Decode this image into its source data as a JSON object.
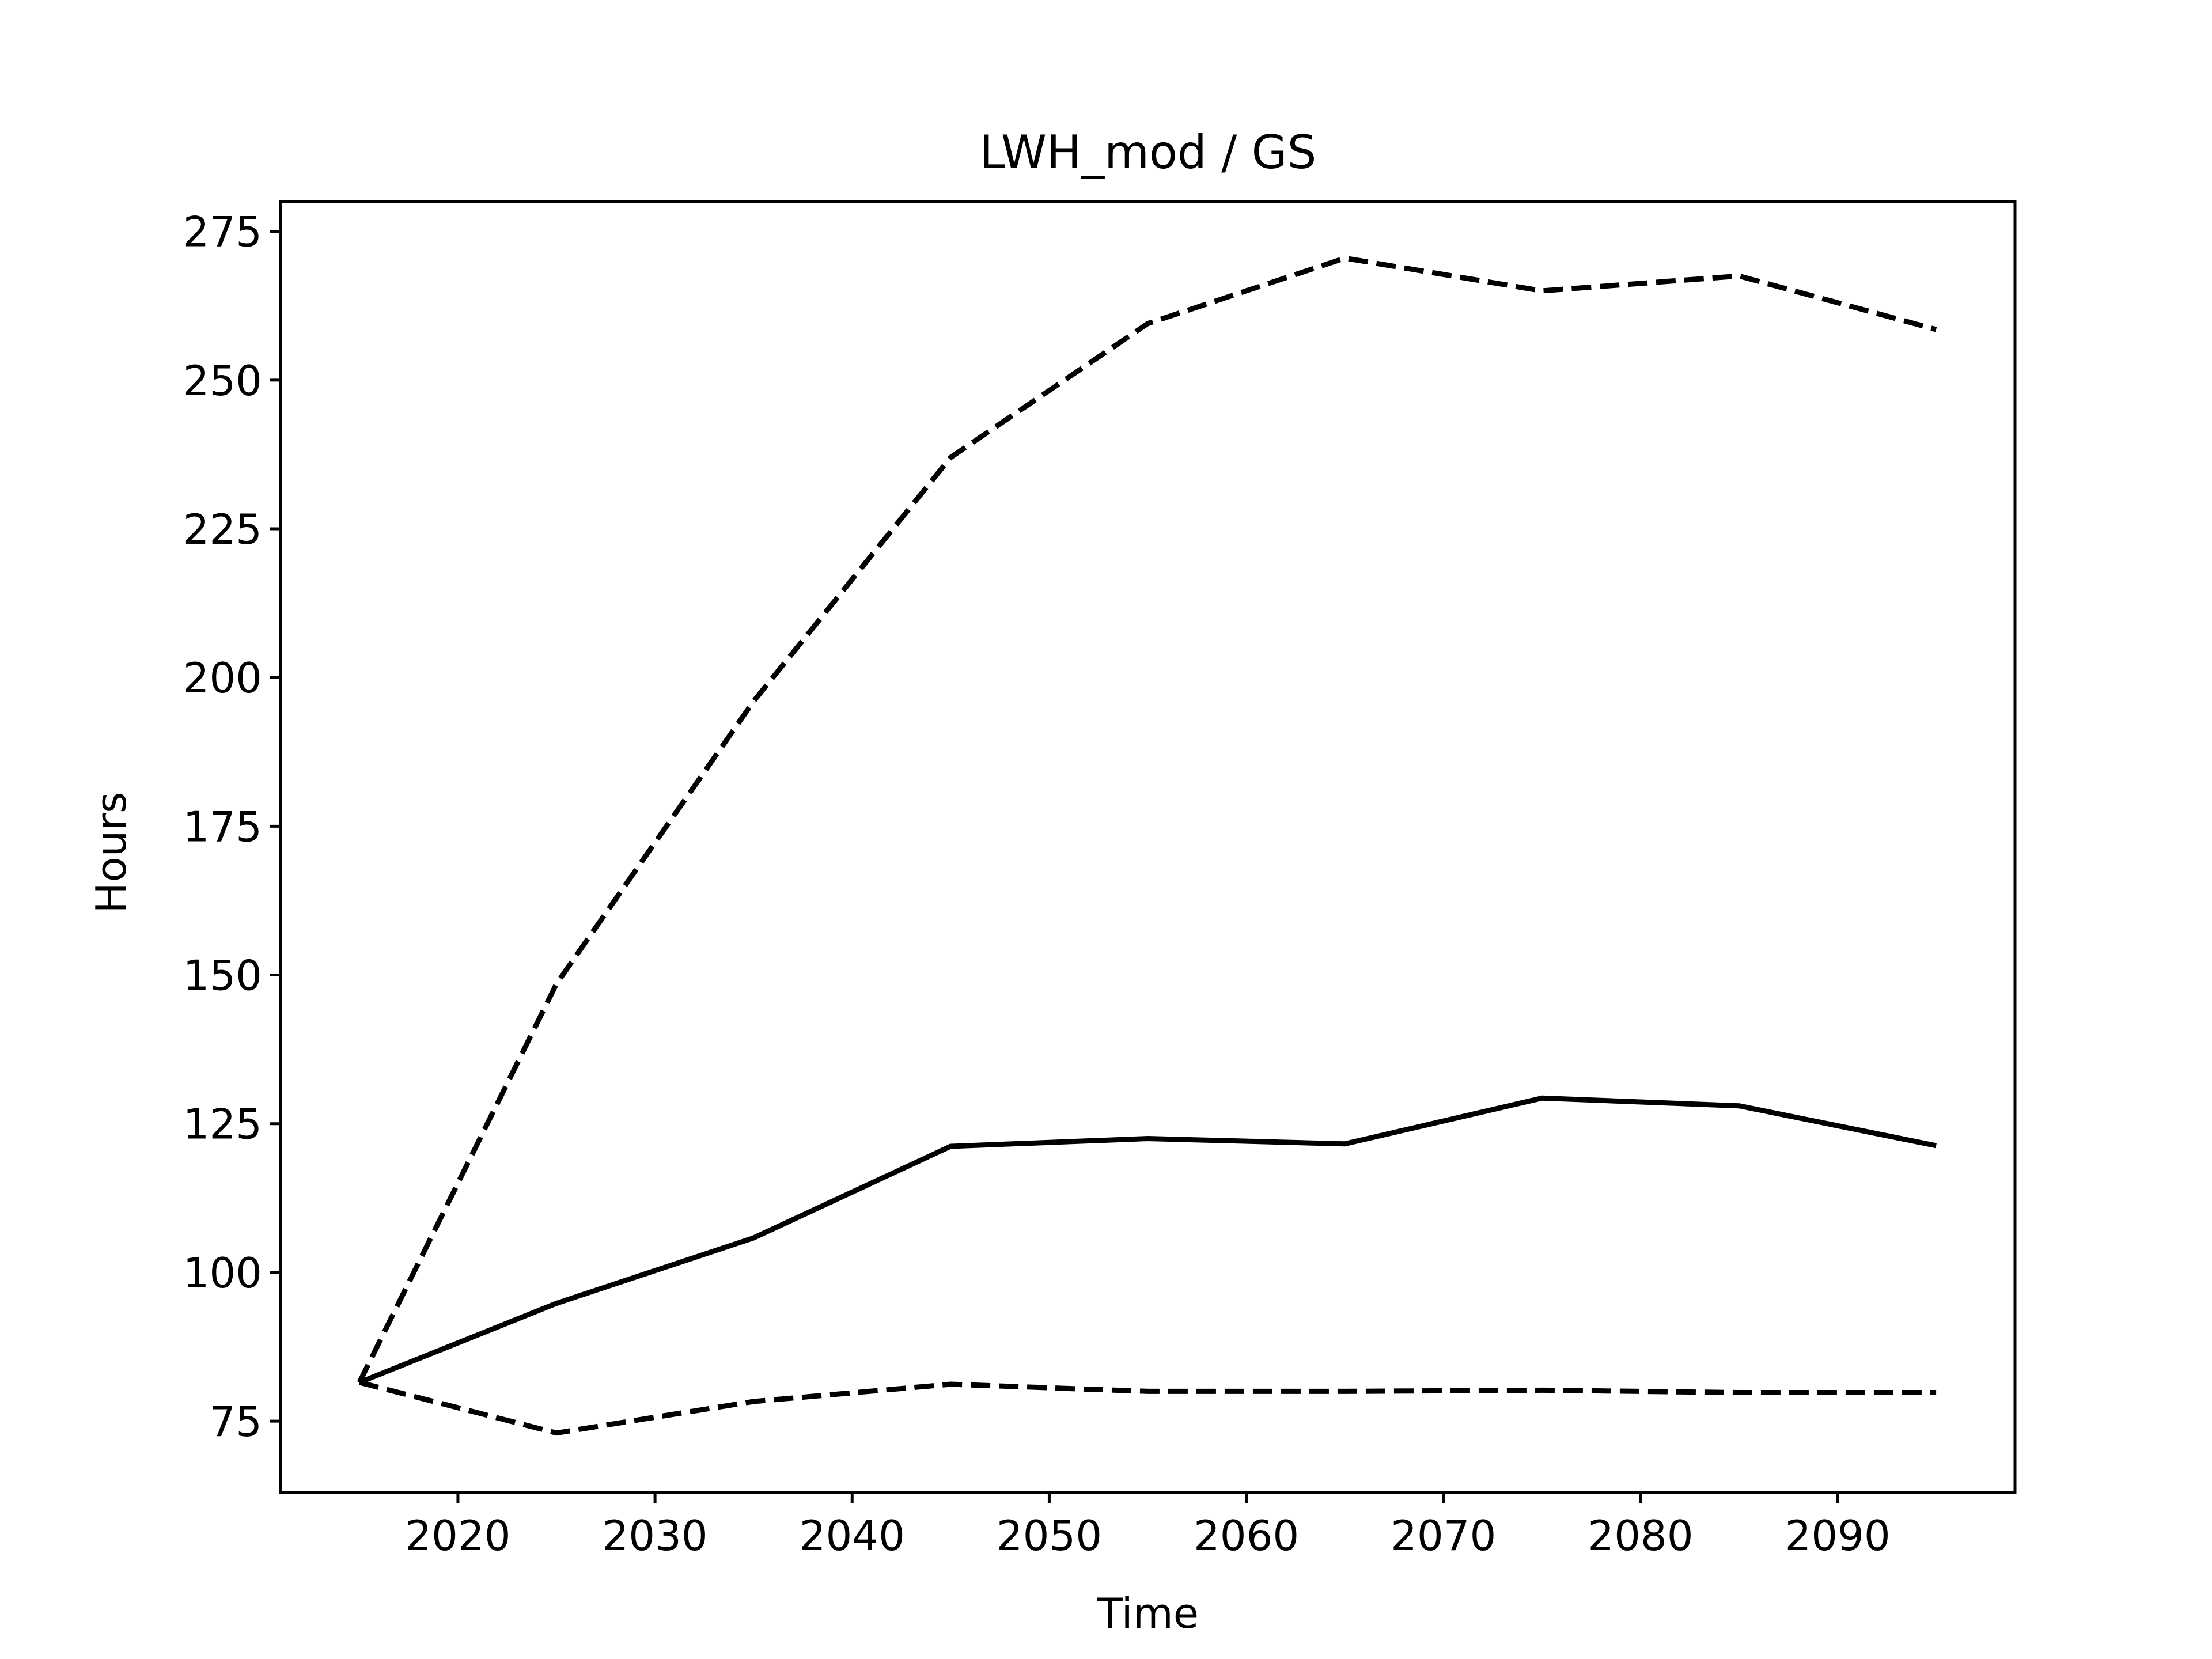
{
  "chart_data": {
    "type": "line",
    "title": "LWH_mod / GS",
    "xlabel": "Time",
    "ylabel": "Hours",
    "xlim": [
      2011,
      2099
    ],
    "ylim": [
      63,
      280
    ],
    "xticks": [
      2020,
      2030,
      2040,
      2050,
      2060,
      2070,
      2080,
      2090
    ],
    "yticks": [
      75,
      100,
      125,
      150,
      175,
      200,
      225,
      250,
      275
    ],
    "grid": false,
    "legend": "none",
    "x": [
      2015,
      2025,
      2035,
      2045,
      2055,
      2065,
      2075,
      2085,
      2095
    ],
    "series": [
      {
        "style": "dashed",
        "color": "#000000",
        "values": [
          81.5,
          148.5,
          196.0,
          237.0,
          259.5,
          270.5,
          265.0,
          267.5,
          258.5
        ]
      },
      {
        "style": "solid",
        "color": "#000000",
        "values": [
          81.5,
          94.8,
          105.8,
          121.2,
          122.5,
          121.6,
          129.3,
          128.0,
          121.3
        ]
      },
      {
        "style": "dashed",
        "color": "#000000",
        "values": [
          81.5,
          73.0,
          78.3,
          81.2,
          80.0,
          80.0,
          80.2,
          79.8,
          79.8
        ]
      }
    ]
  }
}
